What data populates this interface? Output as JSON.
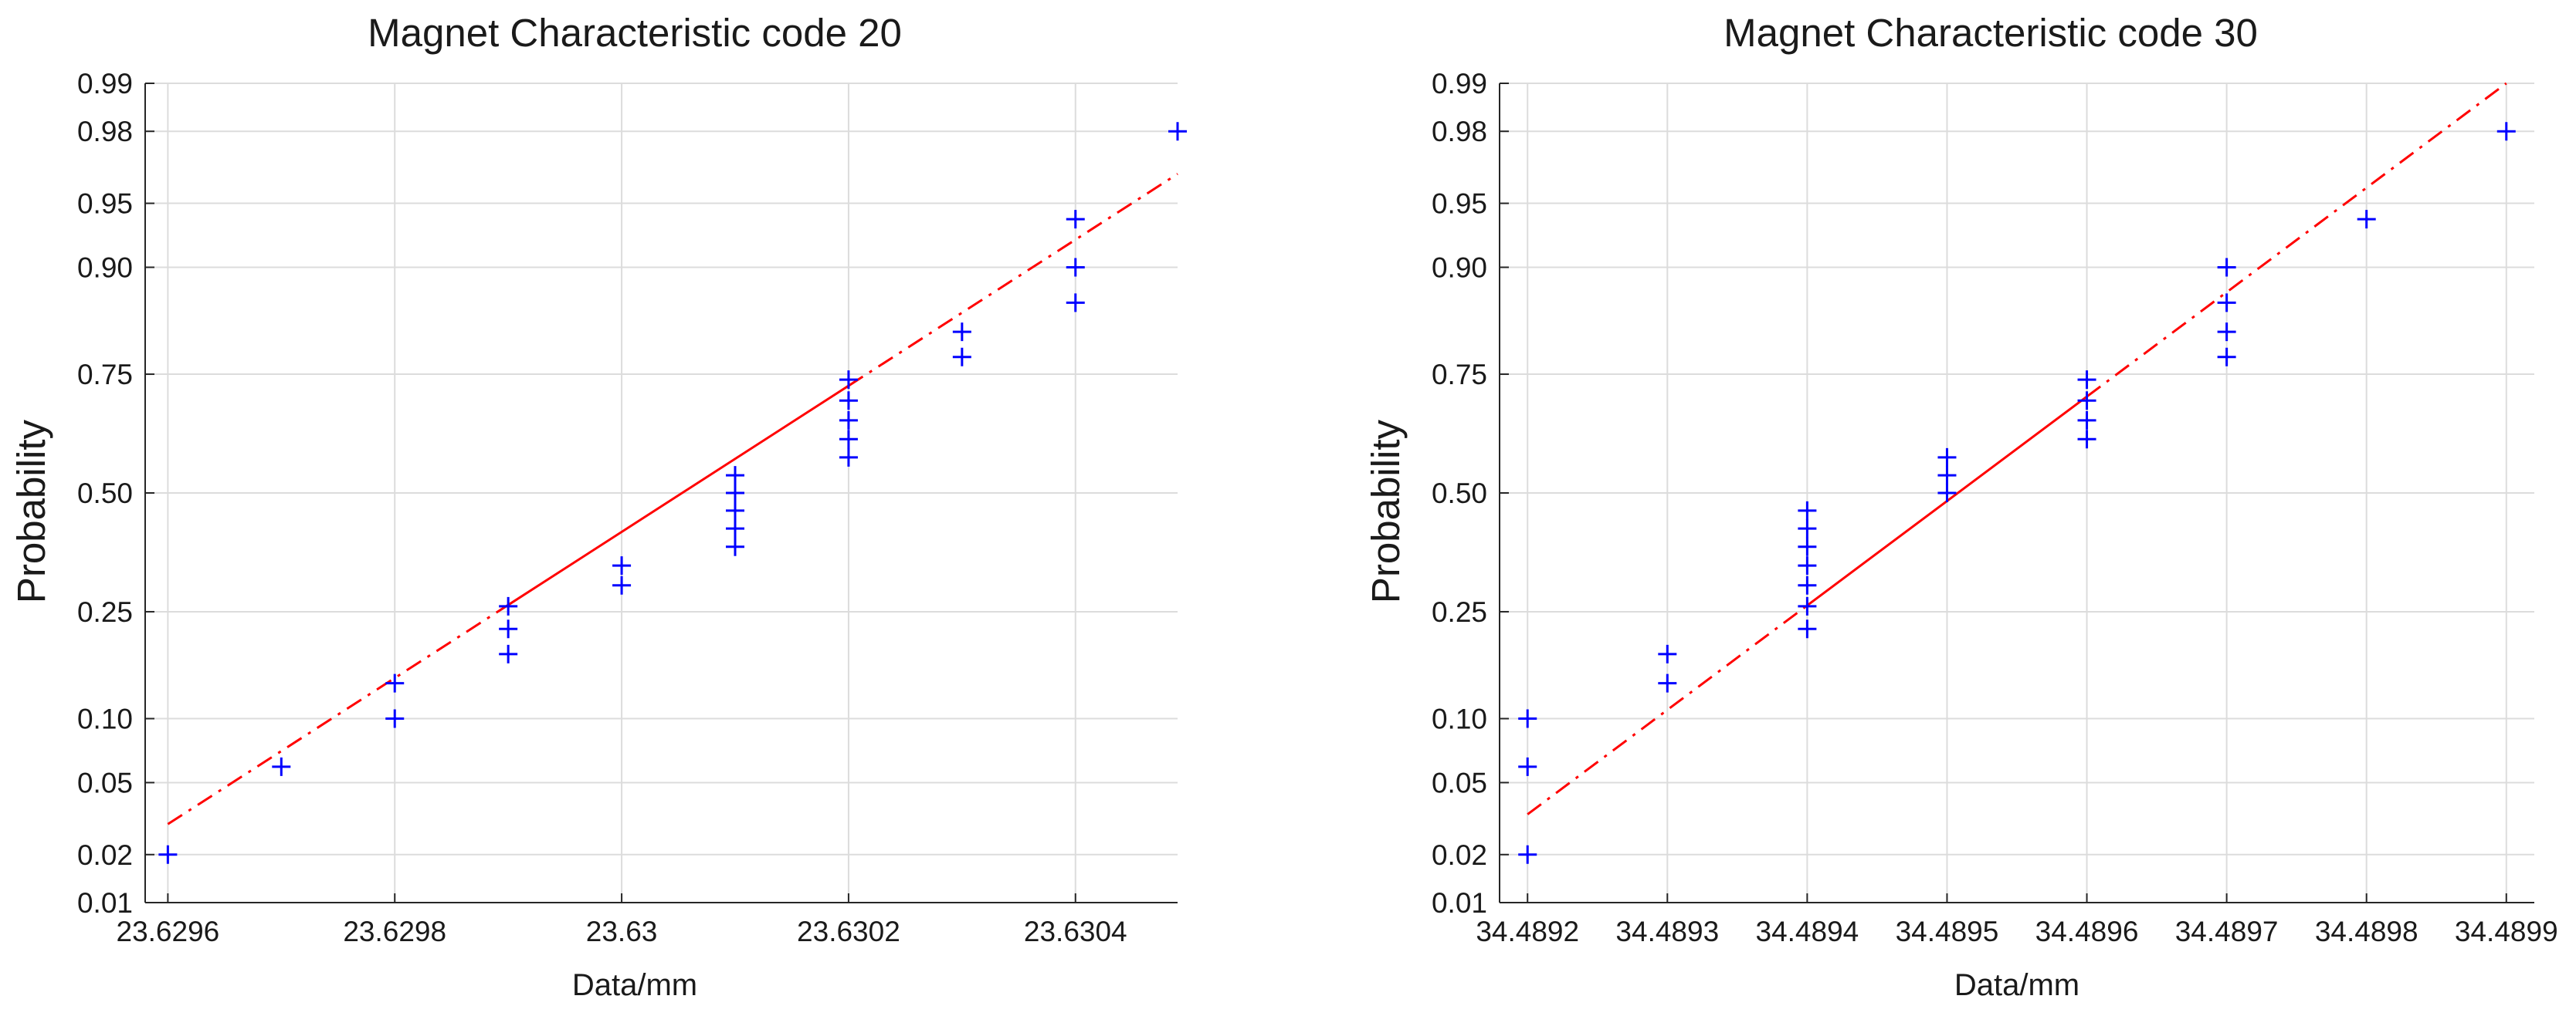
{
  "chart_data": [
    {
      "type": "scatter",
      "subtype": "normal-probability-plot",
      "title": "Magnet Characteristic code 20",
      "xlabel": "Data/mm",
      "ylabel": "Probability",
      "xlim": [
        23.62958,
        23.63049
      ],
      "x_ticks": [
        23.6296,
        23.6298,
        23.63,
        23.6302,
        23.6304
      ],
      "x_tick_labels": [
        "23.6296",
        "23.6298",
        "23.63",
        "23.6302",
        "23.6304"
      ],
      "y_ticks": [
        0.01,
        0.02,
        0.05,
        0.1,
        0.25,
        0.5,
        0.75,
        0.9,
        0.95,
        0.98,
        0.99
      ],
      "y_tick_labels": [
        "0.01",
        "0.02",
        "0.05",
        "0.10",
        "0.25",
        "0.50",
        "0.75",
        "0.90",
        "0.95",
        "0.98",
        "0.99"
      ],
      "grid": true,
      "points": [
        {
          "x": 23.6296,
          "p": 0.02
        },
        {
          "x": 23.6297,
          "p": 0.06
        },
        {
          "x": 23.6298,
          "p": 0.1
        },
        {
          "x": 23.6298,
          "p": 0.14
        },
        {
          "x": 23.6299,
          "p": 0.18
        },
        {
          "x": 23.6299,
          "p": 0.22
        },
        {
          "x": 23.6299,
          "p": 0.26
        },
        {
          "x": 23.63,
          "p": 0.3
        },
        {
          "x": 23.63,
          "p": 0.34
        },
        {
          "x": 23.6301,
          "p": 0.38
        },
        {
          "x": 23.6301,
          "p": 0.42
        },
        {
          "x": 23.6301,
          "p": 0.46
        },
        {
          "x": 23.6301,
          "p": 0.5
        },
        {
          "x": 23.6301,
          "p": 0.54
        },
        {
          "x": 23.6302,
          "p": 0.58
        },
        {
          "x": 23.6302,
          "p": 0.62
        },
        {
          "x": 23.6302,
          "p": 0.66
        },
        {
          "x": 23.6302,
          "p": 0.7
        },
        {
          "x": 23.6302,
          "p": 0.74
        },
        {
          "x": 23.6303,
          "p": 0.78
        },
        {
          "x": 23.6303,
          "p": 0.82
        },
        {
          "x": 23.6304,
          "p": 0.86
        },
        {
          "x": 23.6304,
          "p": 0.9
        },
        {
          "x": 23.6304,
          "p": 0.94
        },
        {
          "x": 23.63049,
          "p": 0.98
        }
      ],
      "fit_line": {
        "x0": 23.6296,
        "p0": 0.03,
        "x1": 23.63049,
        "p1": 0.965,
        "solid_from": 23.6299,
        "solid_to": 23.6302,
        "color": "#ff0000"
      },
      "marker_color": "#0000ff"
    },
    {
      "type": "scatter",
      "subtype": "normal-probability-plot",
      "title": "Magnet Characteristic code 30",
      "xlabel": "Data/mm",
      "ylabel": "Probability",
      "xlim": [
        34.48918,
        34.48992
      ],
      "x_ticks": [
        34.4892,
        34.4893,
        34.4894,
        34.4895,
        34.4896,
        34.4897,
        34.4898,
        34.4899
      ],
      "x_tick_labels": [
        "34.4892",
        "34.4893",
        "34.4894",
        "34.4895",
        "34.4896",
        "34.4897",
        "34.4898",
        "34.4899"
      ],
      "y_ticks": [
        0.01,
        0.02,
        0.05,
        0.1,
        0.25,
        0.5,
        0.75,
        0.9,
        0.95,
        0.98,
        0.99
      ],
      "y_tick_labels": [
        "0.01",
        "0.02",
        "0.05",
        "0.10",
        "0.25",
        "0.50",
        "0.75",
        "0.90",
        "0.95",
        "0.98",
        "0.99"
      ],
      "grid": true,
      "points": [
        {
          "x": 34.4892,
          "p": 0.02
        },
        {
          "x": 34.4892,
          "p": 0.06
        },
        {
          "x": 34.4892,
          "p": 0.1
        },
        {
          "x": 34.4893,
          "p": 0.14
        },
        {
          "x": 34.4893,
          "p": 0.18
        },
        {
          "x": 34.4894,
          "p": 0.22
        },
        {
          "x": 34.4894,
          "p": 0.26
        },
        {
          "x": 34.4894,
          "p": 0.3
        },
        {
          "x": 34.4894,
          "p": 0.34
        },
        {
          "x": 34.4894,
          "p": 0.38
        },
        {
          "x": 34.4894,
          "p": 0.42
        },
        {
          "x": 34.4894,
          "p": 0.46
        },
        {
          "x": 34.4895,
          "p": 0.5
        },
        {
          "x": 34.4895,
          "p": 0.54
        },
        {
          "x": 34.4895,
          "p": 0.58
        },
        {
          "x": 34.4896,
          "p": 0.62
        },
        {
          "x": 34.4896,
          "p": 0.66
        },
        {
          "x": 34.4896,
          "p": 0.7
        },
        {
          "x": 34.4896,
          "p": 0.74
        },
        {
          "x": 34.4897,
          "p": 0.78
        },
        {
          "x": 34.4897,
          "p": 0.82
        },
        {
          "x": 34.4897,
          "p": 0.86
        },
        {
          "x": 34.4897,
          "p": 0.9
        },
        {
          "x": 34.4898,
          "p": 0.94
        },
        {
          "x": 34.4899,
          "p": 0.98
        }
      ],
      "fit_line": {
        "x0": 34.4892,
        "p0": 0.034,
        "x1": 34.4899,
        "p1": 0.99,
        "solid_from": 34.4894,
        "solid_to": 34.4896,
        "color": "#ff0000"
      },
      "marker_color": "#0000ff"
    }
  ]
}
